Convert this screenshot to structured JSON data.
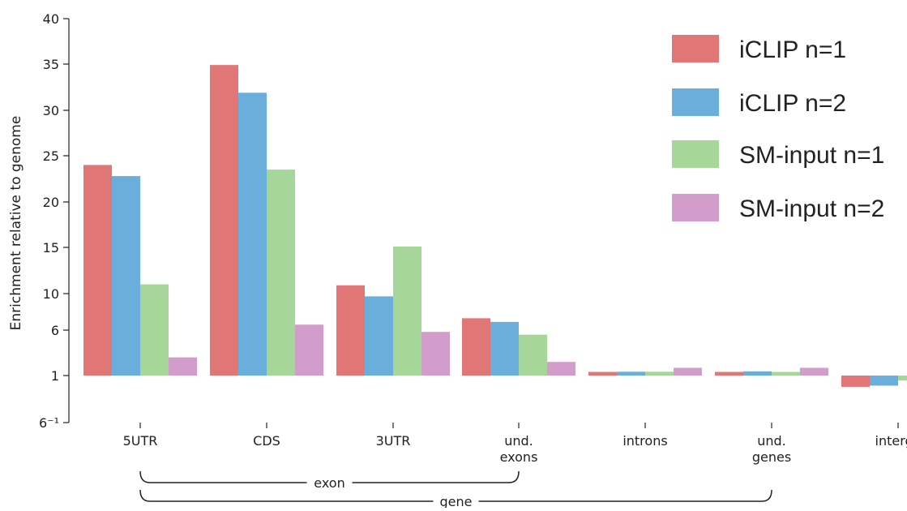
{
  "chart_data": {
    "type": "bar",
    "ylabel": "Enrichment relative to genome",
    "y_scale": "symlog",
    "ylim": [
      -0.1667,
      40
    ],
    "y_ticks": [
      -0.1667,
      1,
      6,
      10,
      15,
      20,
      25,
      30,
      35,
      40
    ],
    "y_tick_labels": [
      "6⁻¹",
      "1",
      "6",
      "10",
      "15",
      "20",
      "25",
      "30",
      "35",
      "40"
    ],
    "categories": [
      "5UTR",
      "CDS",
      "3UTR",
      "und.\nexons",
      "introns",
      "und.\ngenes",
      "interge"
    ],
    "series": [
      {
        "name": "iCLIP n=1",
        "color": "#e07676",
        "values": [
          24.0,
          34.9,
          10.9,
          7.3,
          1.4,
          1.4,
          0.72
        ]
      },
      {
        "name": "iCLIP n=2",
        "color": "#6aaedc",
        "values": [
          22.8,
          31.9,
          9.7,
          6.9,
          1.42,
          1.46,
          0.75
        ]
      },
      {
        "name": "SM-input n=1",
        "color": "#a6d69a",
        "values": [
          11.0,
          23.5,
          15.1,
          5.5,
          1.42,
          1.4,
          0.88
        ]
      },
      {
        "name": "SM-input n=2",
        "color": "#d29dca",
        "values": [
          3.0,
          6.6,
          5.8,
          2.5,
          1.85,
          1.85,
          null
        ]
      }
    ],
    "legend_position": "top-right",
    "brackets": [
      {
        "label": "exon",
        "from": "5UTR",
        "to": "und.\nexons"
      },
      {
        "label": "gene",
        "from": "5UTR",
        "to": "und.\ngenes"
      }
    ],
    "grid": false
  }
}
